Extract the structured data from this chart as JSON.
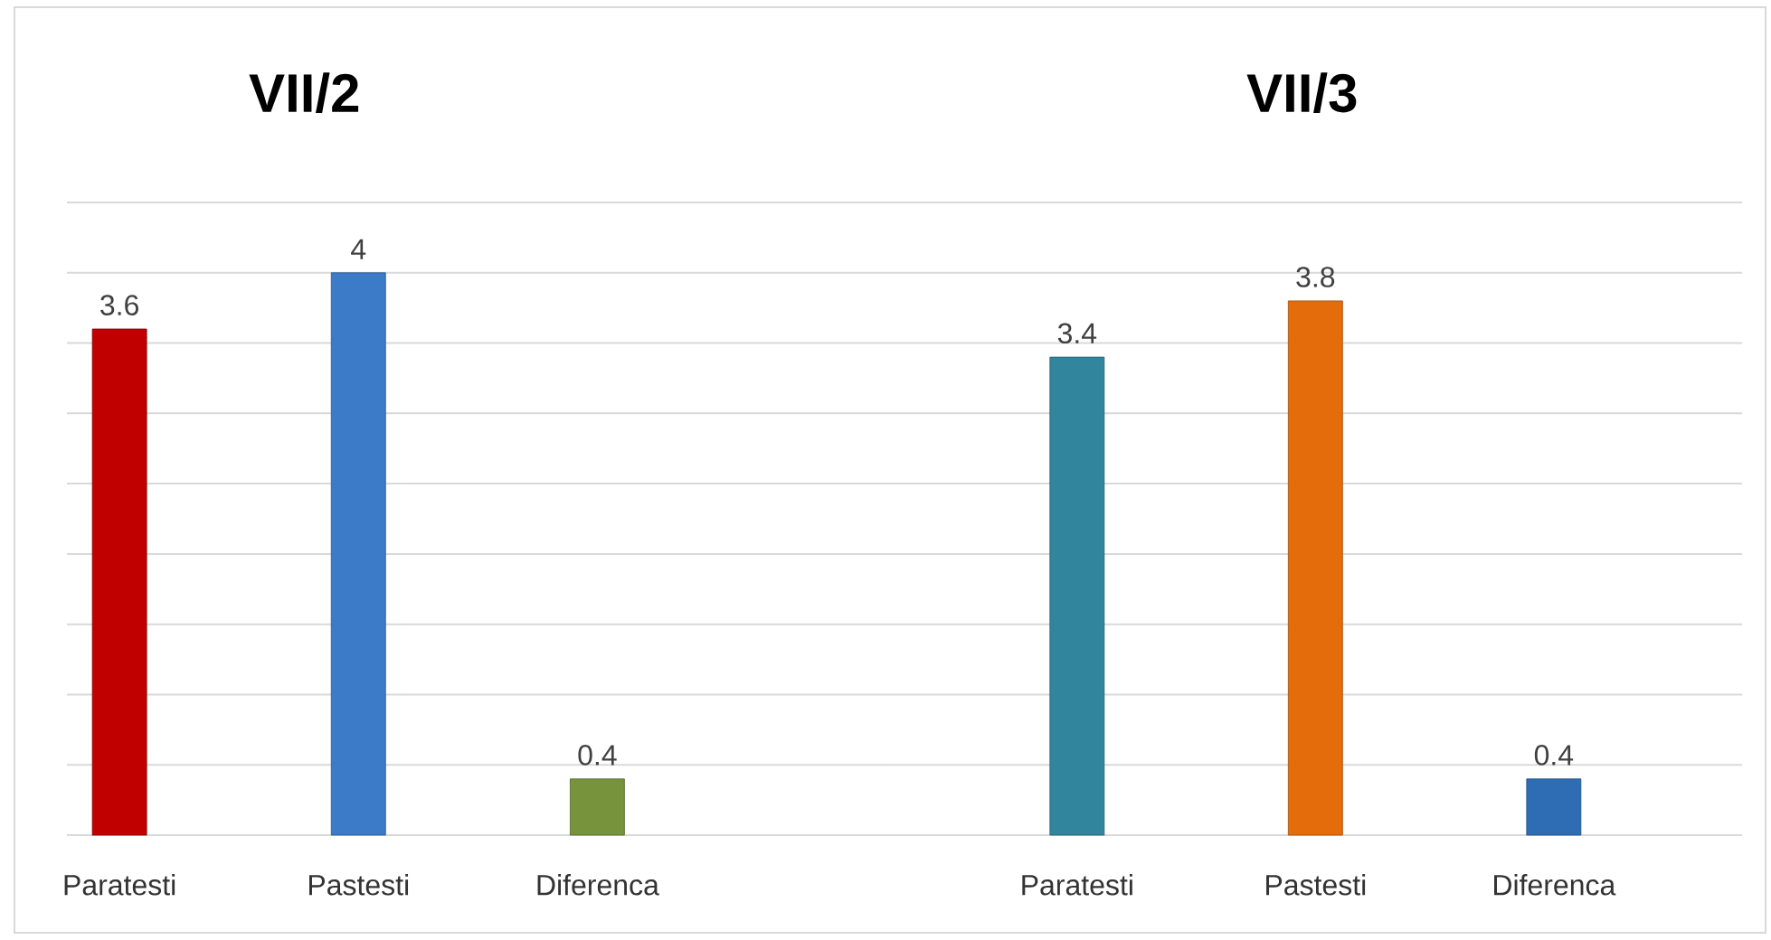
{
  "chart_data": [
    {
      "type": "bar",
      "title": "VII/2",
      "categories": [
        "Paratesti",
        "Pastesti",
        "Diferenca"
      ],
      "values": [
        3.6,
        4,
        0.4
      ],
      "colors": [
        "#c00000",
        "#3c7bc8",
        "#77933c"
      ],
      "data_labels": true,
      "ylim": [
        0,
        4.5
      ],
      "yticks": [
        {
          "value": 0,
          "label": null
        },
        {
          "value": 0.5,
          "label": null
        },
        {
          "value": 1,
          "label": null
        },
        {
          "value": 1.5,
          "label": null
        },
        {
          "value": 2,
          "label": null
        },
        {
          "value": 2.5,
          "label": null
        },
        {
          "value": 3,
          "label": null
        },
        {
          "value": 3.5,
          "label": null
        },
        {
          "value": 4,
          "label": null
        },
        {
          "value": 4.5,
          "label": null
        }
      ],
      "tick_labels": "x",
      "grid": "y"
    },
    {
      "type": "bar",
      "title": "VII/3",
      "categories": [
        "Paratesti",
        "Pastesti",
        "Diferenca"
      ],
      "values": [
        3.4,
        3.8,
        0.4
      ],
      "colors": [
        "#31859c",
        "#e46c0a",
        "#2e6db4"
      ],
      "data_labels": true,
      "ylim": [
        0,
        4.5
      ],
      "yticks": [
        {
          "value": 0,
          "label": null
        },
        {
          "value": 0.5,
          "label": null
        },
        {
          "value": 1,
          "label": null
        },
        {
          "value": 1.5,
          "label": null
        },
        {
          "value": 2,
          "label": null
        },
        {
          "value": 2.5,
          "label": null
        },
        {
          "value": 3,
          "label": null
        },
        {
          "value": 3.5,
          "label": null
        },
        {
          "value": 4,
          "label": null
        },
        {
          "value": 4.5,
          "label": null
        }
      ],
      "tick_labels": "x",
      "grid": "y"
    }
  ]
}
